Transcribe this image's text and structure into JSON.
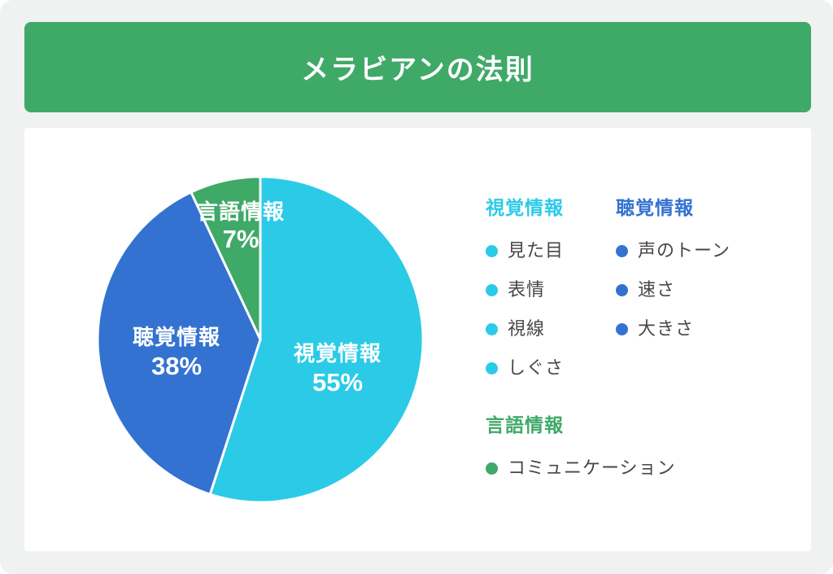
{
  "title": "メラビアンの法則",
  "colors": {
    "banner_green": "#3FA968",
    "cyan": "#2BCBE8",
    "blue": "#3372D0",
    "green": "#3FA968",
    "page_bg": "#F0F1F1",
    "card_bg": "#FFFFFF",
    "legend_item_text": "#474747",
    "pie_label_text": "#FFFFFF"
  },
  "chart_data": {
    "type": "pie",
    "title": "メラビアンの法則",
    "start_angle_deg": 0,
    "direction": "clockwise",
    "legend_position": "right",
    "slices": [
      {
        "label": "視覚情報",
        "value": 55,
        "display": "55%",
        "color": "#2BCBE8"
      },
      {
        "label": "聴覚情報",
        "value": 38,
        "display": "38%",
        "color": "#3372D0"
      },
      {
        "label": "言語情報",
        "value": 7,
        "display": "7%",
        "color": "#3FA968"
      }
    ]
  },
  "legend": {
    "groups": [
      {
        "header": "視覚情報",
        "color": "#2BCBE8",
        "items": [
          "見た目",
          "表情",
          "視線",
          "しぐさ"
        ]
      },
      {
        "header": "聴覚情報",
        "color": "#3372D0",
        "items": [
          "声のトーン",
          "速さ",
          "大きさ"
        ]
      },
      {
        "header": "言語情報",
        "color": "#3FA968",
        "items": [
          "コミュニケーション"
        ]
      }
    ]
  }
}
